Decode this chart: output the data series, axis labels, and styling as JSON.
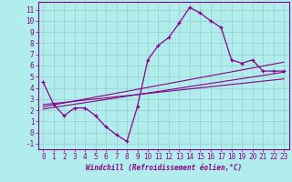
{
  "xlabel": "Windchill (Refroidissement éolien,°C)",
  "background_color": "#b2eded",
  "line_color": "#880088",
  "grid_color": "#99cccc",
  "xlim": [
    -0.5,
    23.5
  ],
  "ylim": [
    -1.5,
    11.7
  ],
  "yticks": [
    -1,
    0,
    1,
    2,
    3,
    4,
    5,
    6,
    7,
    8,
    9,
    10,
    11
  ],
  "xticks": [
    0,
    1,
    2,
    3,
    4,
    5,
    6,
    7,
    8,
    9,
    10,
    11,
    12,
    13,
    14,
    15,
    16,
    17,
    18,
    19,
    20,
    21,
    22,
    23
  ],
  "main_series_x": [
    0,
    1,
    2,
    3,
    4,
    5,
    6,
    7,
    8,
    9,
    10,
    11,
    12,
    13,
    14,
    15,
    16,
    17,
    18,
    19,
    20,
    21,
    22,
    23
  ],
  "main_series_y": [
    4.5,
    2.5,
    1.5,
    2.2,
    2.2,
    1.5,
    0.5,
    -0.2,
    -0.8,
    2.3,
    6.5,
    7.8,
    8.5,
    9.8,
    11.2,
    10.7,
    10.0,
    9.4,
    6.5,
    6.2,
    6.5,
    5.5,
    5.5,
    5.5
  ],
  "reg_line1_x": [
    0,
    23
  ],
  "reg_line1_y": [
    2.1,
    5.4
  ],
  "reg_line2_x": [
    0,
    23
  ],
  "reg_line2_y": [
    2.3,
    6.3
  ],
  "reg_line3_x": [
    0,
    23
  ],
  "reg_line3_y": [
    2.5,
    4.8
  ],
  "tick_fontsize": 5.5,
  "xlabel_fontsize": 5.5
}
